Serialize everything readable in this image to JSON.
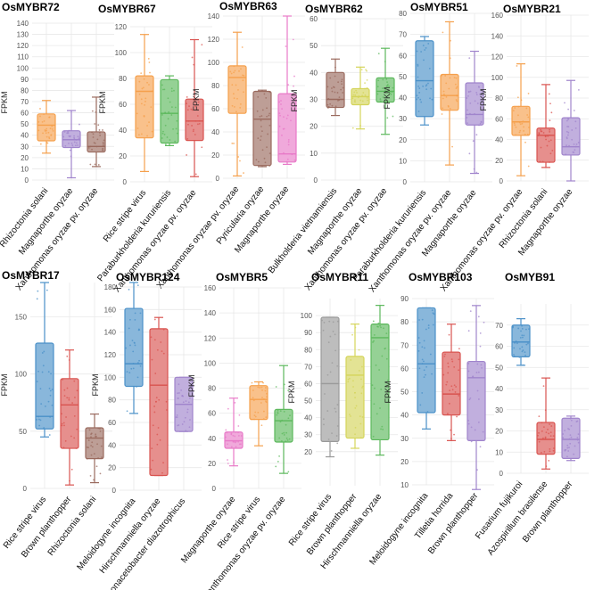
{
  "chart_data": [
    {
      "type": "box",
      "title": "OsMYBR72",
      "ylabel": "FPKM",
      "ylim": [
        0,
        140
      ],
      "yticks": [
        0,
        10,
        20,
        30,
        40,
        50,
        60,
        70,
        80,
        90,
        100,
        110,
        120,
        130,
        140
      ],
      "categories": [
        "Rhizoctonia solani",
        "Magnaporthe oryzae",
        "Xanthomonas oryzae pv. oryzae"
      ],
      "boxes": [
        {
          "color": "#f5a04c",
          "min": 24,
          "q1": 35,
          "median": 49,
          "q3": 59,
          "max": 71
        },
        {
          "color": "#a084cc",
          "min": 2,
          "q1": 29,
          "median": 36,
          "q3": 44,
          "max": 62
        },
        {
          "color": "#9a6a5e",
          "min": 12,
          "q1": 25,
          "median": 30,
          "q3": 43,
          "max": 74
        }
      ]
    },
    {
      "type": "box",
      "title": "OsMYBR67",
      "ylabel": "FPKM",
      "ylim": [
        0,
        120
      ],
      "yticks": [
        0,
        20,
        40,
        60,
        80,
        100,
        120
      ],
      "categories": [
        "Rice stripe virus",
        "Paraburkholderia kururiensis",
        "Xanthomonas oryzae pv. oryzae"
      ],
      "boxes": [
        {
          "color": "#f5a04c",
          "min": 8,
          "q1": 34,
          "median": 70,
          "q3": 82,
          "max": 114
        },
        {
          "color": "#5cb85c",
          "min": 28,
          "q1": 30,
          "median": 53,
          "q3": 79,
          "max": 82
        },
        {
          "color": "#d9534f",
          "min": 4,
          "q1": 32,
          "median": 47,
          "q3": 64,
          "max": 110
        }
      ]
    },
    {
      "type": "box",
      "title": "OsMYBR63",
      "ylabel": "FPKM",
      "ylim": [
        0,
        140
      ],
      "yticks": [
        0,
        20,
        40,
        60,
        80,
        100,
        120,
        140
      ],
      "categories": [
        "Xanthomonas oryzae pv. oryzae",
        "Pyricularia oryzae",
        "Magnaporthe oryzae"
      ],
      "boxes": [
        {
          "color": "#f5a04c",
          "min": 2,
          "q1": 56,
          "median": 87,
          "q3": 97,
          "max": 126
        },
        {
          "color": "#9a6a5e",
          "min": 10,
          "q1": 11,
          "median": 51,
          "q3": 75,
          "max": 76
        },
        {
          "color": "#e87ac8",
          "min": 12,
          "q1": 14,
          "median": 21,
          "q3": 73,
          "max": 140
        }
      ]
    },
    {
      "type": "box",
      "title": "OsMYBR62",
      "ylabel": "FPKM",
      "ylim": [
        0,
        60
      ],
      "yticks": [
        0,
        10,
        20,
        30,
        40,
        50,
        60
      ],
      "categories": [
        "Bulkholderia vietnamiensis",
        "Magnaporthe oryzae",
        "Xanthomonas oryzae pv. oryzae"
      ],
      "boxes": [
        {
          "color": "#9a6a5e",
          "min": 24,
          "q1": 27,
          "median": 30,
          "q3": 40,
          "max": 45
        },
        {
          "color": "#d4d45a",
          "min": 19,
          "q1": 28,
          "median": 31,
          "q3": 34,
          "max": 42
        },
        {
          "color": "#5cb85c",
          "min": 17,
          "q1": 29,
          "median": 33,
          "q3": 38,
          "max": 49
        }
      ]
    },
    {
      "type": "box",
      "title": "OsMYBR51",
      "ylabel": "FPKM",
      "ylim": [
        0,
        80
      ],
      "yticks": [
        0,
        10,
        20,
        30,
        40,
        50,
        60,
        70,
        80
      ],
      "categories": [
        "Paraburkholderia kururiensis",
        "Xanthomonas oryzae pv. oryzae",
        "Magnaporthe oryzae"
      ],
      "boxes": [
        {
          "color": "#4a90c8",
          "min": 27,
          "q1": 31,
          "median": 48,
          "q3": 67,
          "max": 69
        },
        {
          "color": "#f5a04c",
          "min": 8,
          "q1": 34,
          "median": 41,
          "q3": 51,
          "max": 76
        },
        {
          "color": "#a084cc",
          "min": 4,
          "q1": 27,
          "median": 32,
          "q3": 47,
          "max": 62
        }
      ]
    },
    {
      "type": "box",
      "title": "OsMYBR21",
      "ylabel": "FPKM",
      "ylim": [
        0,
        160
      ],
      "yticks": [
        0,
        20,
        40,
        60,
        80,
        100,
        120,
        140,
        160
      ],
      "categories": [
        "Xanthomonas oryzae pv. oryzae",
        "Rhizoctonia solani",
        "Magnaporthe oryzae"
      ],
      "boxes": [
        {
          "color": "#f5a04c",
          "min": 5,
          "q1": 44,
          "median": 57,
          "q3": 72,
          "max": 113
        },
        {
          "color": "#d9534f",
          "min": 13,
          "q1": 18,
          "median": 44,
          "q3": 51,
          "max": 93
        },
        {
          "color": "#a084cc",
          "min": 0,
          "q1": 25,
          "median": 33,
          "q3": 61,
          "max": 97
        }
      ]
    },
    {
      "type": "box",
      "title": "OsMYBR17",
      "ylabel": "FPKM",
      "ylim": [
        0,
        180
      ],
      "yticks": [
        0,
        50,
        100,
        150
      ],
      "categories": [
        "Rice stripe virus",
        "Brown planthopper",
        "Rhizoctonia solani"
      ],
      "boxes": [
        {
          "color": "#4a90c8",
          "min": 45,
          "q1": 52,
          "median": 63,
          "q3": 127,
          "max": 180
        },
        {
          "color": "#d9534f",
          "min": 3,
          "q1": 35,
          "median": 73,
          "q3": 96,
          "max": 121
        },
        {
          "color": "#9a6a5e",
          "min": 5,
          "q1": 26,
          "median": 44,
          "q3": 53,
          "max": 65
        }
      ]
    },
    {
      "type": "box",
      "title": "OsMYBR124",
      "ylabel": "FPKM",
      "ylim": [
        0,
        180
      ],
      "yticks": [
        0,
        20,
        40,
        60,
        80,
        100,
        120,
        140,
        160,
        180
      ],
      "categories": [
        "Meloidogyne incognita",
        "Hirschmanniella oryzae",
        "Gluconacetobacter diazotrophicus"
      ],
      "boxes": [
        {
          "color": "#4a90c8",
          "min": 68,
          "q1": 92,
          "median": 112,
          "q3": 161,
          "max": 184
        },
        {
          "color": "#d9534f",
          "min": 13,
          "q1": 13,
          "median": 93,
          "q3": 143,
          "max": 153
        },
        {
          "color": "#a084cc",
          "min": 52,
          "q1": 52,
          "median": 76,
          "q3": 100,
          "max": 100
        }
      ]
    },
    {
      "type": "box",
      "title": "OsMYBR5",
      "ylabel": "FPKM",
      "ylim": [
        0,
        160
      ],
      "yticks": [
        0,
        20,
        40,
        60,
        80,
        100,
        120,
        140,
        160
      ],
      "categories": [
        "Magnaporthe oryzae",
        "Rice stripe virus",
        "Xanthomonas oryzae pv. oryzae"
      ],
      "boxes": [
        {
          "color": "#e87ac8",
          "min": 18,
          "q1": 32,
          "median": 38,
          "q3": 45,
          "max": 72
        },
        {
          "color": "#f5a04c",
          "min": 34,
          "q1": 55,
          "median": 71,
          "q3": 82,
          "max": 85
        },
        {
          "color": "#5cb85c",
          "min": 12,
          "q1": 37,
          "median": 54,
          "q3": 63,
          "max": 98
        }
      ]
    },
    {
      "type": "box",
      "title": "OsMYBR11",
      "ylabel": "FPKM",
      "ylim": [
        0,
        110
      ],
      "yticks": [
        20,
        30,
        40,
        50,
        60,
        70,
        80,
        90,
        100
      ],
      "categories": [
        "Rice stripe virus",
        "Brown planthopper",
        "Hirschmanniella oryzae"
      ],
      "boxes": [
        {
          "color": "#9a9a9a",
          "min": 17,
          "q1": 26,
          "median": 60,
          "q3": 99,
          "max": 99
        },
        {
          "color": "#d4d45a",
          "min": 22,
          "q1": 28,
          "median": 65,
          "q3": 76,
          "max": 95
        },
        {
          "color": "#5cb85c",
          "min": 18,
          "q1": 27,
          "median": 87,
          "q3": 95,
          "max": 106
        }
      ]
    },
    {
      "type": "box",
      "title": "OsMYBR103",
      "ylabel": "FPKM",
      "ylim": [
        10,
        90
      ],
      "yticks": [
        10,
        20,
        30,
        40,
        50,
        60,
        70,
        80,
        90
      ],
      "categories": [
        "Meloidogyne incognita",
        "Tilletia horrida",
        "Brown planthopper"
      ],
      "boxes": [
        {
          "color": "#4a90c8",
          "min": 34,
          "q1": 41,
          "median": 62,
          "q3": 86,
          "max": 86
        },
        {
          "color": "#d9534f",
          "min": 29,
          "q1": 40,
          "median": 49,
          "q3": 67,
          "max": 79
        },
        {
          "color": "#a084cc",
          "min": 8,
          "q1": 29,
          "median": 56,
          "q3": 63,
          "max": 87
        }
      ]
    },
    {
      "type": "box",
      "title": "OsMYB91",
      "ylabel": "",
      "ylim": [
        0,
        80
      ],
      "yticks": [
        0,
        10,
        20,
        30,
        40,
        50,
        60,
        70
      ],
      "categories": [
        "Fusarium fujikuroi",
        "Azospirillum brasilense",
        "Brown planthopper"
      ],
      "boxes": [
        {
          "color": "#4a90c8",
          "min": 51,
          "q1": 55,
          "median": 62,
          "q3": 70,
          "max": 73
        },
        {
          "color": "#d9534f",
          "min": 2,
          "q1": 9,
          "median": 16,
          "q3": 24,
          "max": 45
        },
        {
          "color": "#a084cc",
          "min": 6,
          "q1": 7,
          "median": 16,
          "q3": 26,
          "max": 27
        }
      ]
    }
  ]
}
